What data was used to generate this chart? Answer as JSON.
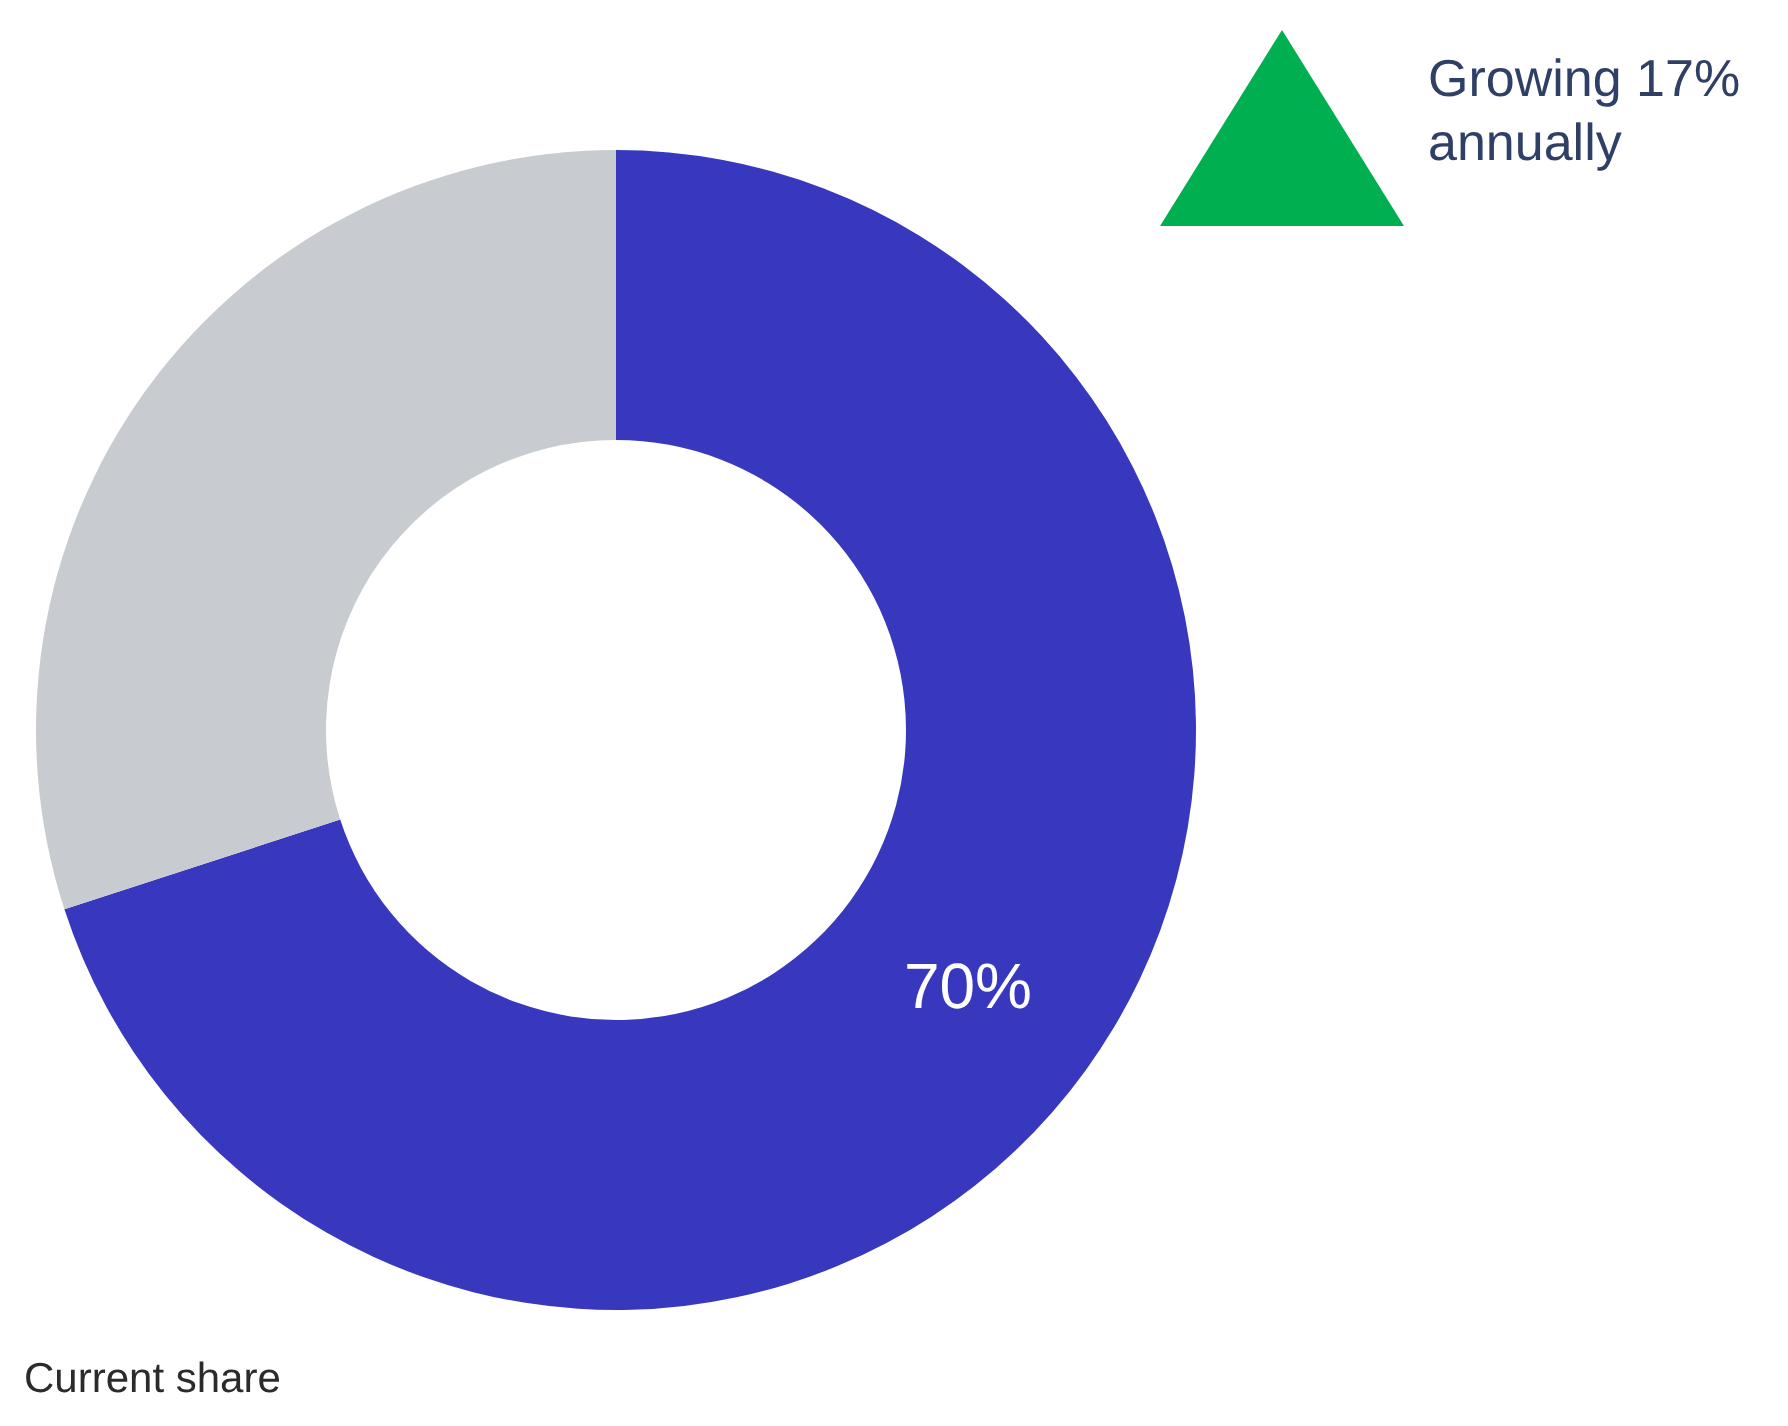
{
  "chart_data": {
    "type": "donut",
    "categories": [
      null,
      null
    ],
    "values": [
      70,
      30
    ],
    "colors": [
      "#3838bf",
      "#c8ccd1"
    ],
    "value_labels": [
      "70%",
      null
    ],
    "annotations": [
      "Growing 17% annually",
      "Current share"
    ]
  }
}
